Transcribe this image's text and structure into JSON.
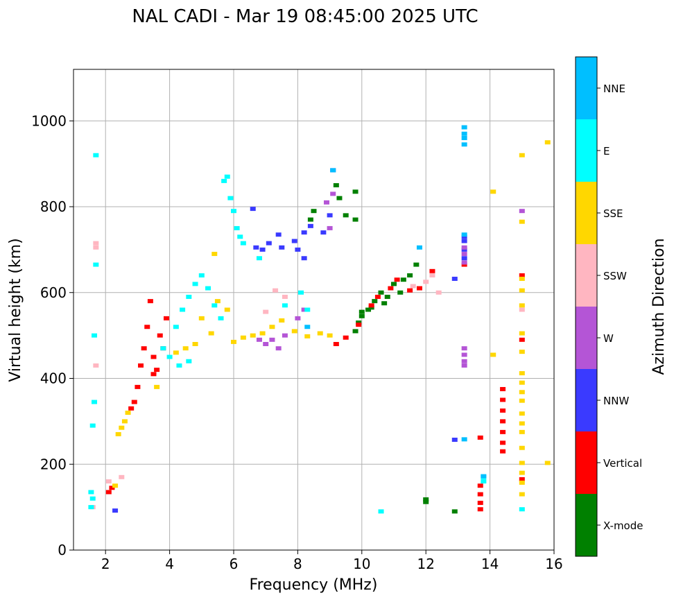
{
  "chart_data": {
    "type": "scatter",
    "title": "NAL CADI - Mar 19 08:45:00 2025 UTC",
    "xlabel": "Frequency (MHz)",
    "ylabel": "Virtual height (km)",
    "xlim": [
      1,
      16
    ],
    "ylim": [
      0,
      1120
    ],
    "xticks": [
      2,
      4,
      6,
      8,
      10,
      12,
      14,
      16
    ],
    "yticks": [
      0,
      200,
      400,
      600,
      800,
      1000
    ],
    "grid": true,
    "colorbar": {
      "label": "Azimuth Direction",
      "categories": [
        {
          "name": "X-mode",
          "color": "#008000"
        },
        {
          "name": "Vertical",
          "color": "#ff0000"
        },
        {
          "name": "NNW",
          "color": "#3a3aff"
        },
        {
          "name": "W",
          "color": "#b455d6"
        },
        {
          "name": "SSW",
          "color": "#ffb6c1"
        },
        {
          "name": "SSE",
          "color": "#ffd700"
        },
        {
          "name": "E",
          "color": "#00ffff"
        },
        {
          "name": "NNE",
          "color": "#00bfff"
        }
      ]
    },
    "series": [
      {
        "name": "X-mode",
        "points": [
          [
            9.8,
            510
          ],
          [
            9.9,
            530
          ],
          [
            10.0,
            545
          ],
          [
            10.2,
            560
          ],
          [
            10.4,
            580
          ],
          [
            10.6,
            600
          ],
          [
            10.8,
            590
          ],
          [
            11.0,
            620
          ],
          [
            11.2,
            600
          ],
          [
            11.5,
            640
          ],
          [
            12.0,
            112
          ],
          [
            12.0,
            118
          ],
          [
            12.9,
            90
          ],
          [
            8.4,
            770
          ],
          [
            8.5,
            790
          ],
          [
            9.2,
            850
          ],
          [
            9.3,
            820
          ],
          [
            9.5,
            780
          ],
          [
            9.8,
            770
          ],
          [
            9.8,
            835
          ],
          [
            10.0,
            555
          ],
          [
            10.3,
            565
          ],
          [
            10.7,
            575
          ],
          [
            11.3,
            630
          ],
          [
            11.7,
            665
          ]
        ]
      },
      {
        "name": "Vertical",
        "points": [
          [
            3.0,
            380
          ],
          [
            3.1,
            430
          ],
          [
            3.2,
            470
          ],
          [
            3.3,
            520
          ],
          [
            3.4,
            580
          ],
          [
            3.5,
            450
          ],
          [
            3.6,
            420
          ],
          [
            3.7,
            500
          ],
          [
            3.8,
            470
          ],
          [
            3.9,
            540
          ],
          [
            2.8,
            330
          ],
          [
            2.9,
            345
          ],
          [
            9.2,
            480
          ],
          [
            9.5,
            495
          ],
          [
            9.9,
            525
          ],
          [
            10.3,
            570
          ],
          [
            10.5,
            590
          ],
          [
            10.9,
            610
          ],
          [
            11.1,
            630
          ],
          [
            11.5,
            605
          ],
          [
            11.8,
            610
          ],
          [
            12.2,
            650
          ],
          [
            13.2,
            665
          ],
          [
            14.4,
            375
          ],
          [
            14.4,
            350
          ],
          [
            14.4,
            325
          ],
          [
            14.4,
            300
          ],
          [
            14.4,
            275
          ],
          [
            14.4,
            250
          ],
          [
            14.4,
            230
          ],
          [
            13.7,
            95
          ],
          [
            13.7,
            110
          ],
          [
            13.7,
            130
          ],
          [
            13.7,
            150
          ],
          [
            13.7,
            262
          ],
          [
            15.0,
            490
          ],
          [
            15.0,
            640
          ],
          [
            15.0,
            165
          ],
          [
            2.1,
            135
          ],
          [
            2.2,
            145
          ],
          [
            3.5,
            410
          ]
        ]
      },
      {
        "name": "NNW",
        "points": [
          [
            6.7,
            705
          ],
          [
            6.9,
            700
          ],
          [
            7.1,
            715
          ],
          [
            7.4,
            735
          ],
          [
            7.5,
            705
          ],
          [
            7.9,
            720
          ],
          [
            8.0,
            700
          ],
          [
            8.2,
            740
          ],
          [
            8.4,
            755
          ],
          [
            8.8,
            740
          ],
          [
            9.0,
            780
          ],
          [
            6.6,
            795
          ],
          [
            13.2,
            730
          ],
          [
            13.2,
            720
          ],
          [
            13.2,
            700
          ],
          [
            13.2,
            680
          ],
          [
            12.9,
            632
          ],
          [
            12.9,
            257
          ],
          [
            2.3,
            92
          ],
          [
            9.1,
            885
          ],
          [
            8.2,
            680
          ]
        ]
      },
      {
        "name": "W",
        "points": [
          [
            7.0,
            480
          ],
          [
            7.2,
            490
          ],
          [
            7.6,
            500
          ],
          [
            8.0,
            540
          ],
          [
            8.2,
            560
          ],
          [
            9.0,
            750
          ],
          [
            9.1,
            830
          ],
          [
            8.9,
            810
          ],
          [
            13.2,
            470
          ],
          [
            13.2,
            455
          ],
          [
            13.2,
            440
          ],
          [
            13.2,
            430
          ],
          [
            13.2,
            705
          ],
          [
            13.2,
            690
          ],
          [
            13.2,
            670
          ],
          [
            15.0,
            790
          ],
          [
            6.8,
            490
          ],
          [
            7.4,
            470
          ]
        ]
      },
      {
        "name": "SSW",
        "points": [
          [
            1.7,
            705
          ],
          [
            1.7,
            715
          ],
          [
            1.7,
            430
          ],
          [
            1.6,
            100
          ],
          [
            2.1,
            160
          ],
          [
            2.5,
            170
          ],
          [
            7.3,
            605
          ],
          [
            7.6,
            590
          ],
          [
            11.6,
            615
          ],
          [
            12.0,
            625
          ],
          [
            12.4,
            600
          ],
          [
            15.0,
            560
          ],
          [
            12.2,
            640
          ],
          [
            7.0,
            555
          ]
        ]
      },
      {
        "name": "SSE",
        "points": [
          [
            2.4,
            270
          ],
          [
            2.5,
            285
          ],
          [
            2.6,
            300
          ],
          [
            2.7,
            320
          ],
          [
            2.3,
            150
          ],
          [
            3.6,
            380
          ],
          [
            4.2,
            460
          ],
          [
            4.5,
            470
          ],
          [
            4.8,
            480
          ],
          [
            5.0,
            540
          ],
          [
            5.3,
            505
          ],
          [
            5.5,
            580
          ],
          [
            5.8,
            560
          ],
          [
            6.0,
            485
          ],
          [
            6.3,
            495
          ],
          [
            6.6,
            500
          ],
          [
            6.9,
            505
          ],
          [
            7.2,
            520
          ],
          [
            7.5,
            535
          ],
          [
            7.9,
            510
          ],
          [
            8.3,
            498
          ],
          [
            8.7,
            505
          ],
          [
            9.0,
            500
          ],
          [
            14.1,
            835
          ],
          [
            14.1,
            455
          ],
          [
            15.0,
            920
          ],
          [
            15.0,
            765
          ],
          [
            15.0,
            632
          ],
          [
            15.0,
            605
          ],
          [
            15.0,
            570
          ],
          [
            15.0,
            505
          ],
          [
            15.0,
            462
          ],
          [
            15.0,
            412
          ],
          [
            15.0,
            390
          ],
          [
            15.0,
            368
          ],
          [
            15.0,
            348
          ],
          [
            15.0,
            318
          ],
          [
            15.0,
            295
          ],
          [
            15.0,
            275
          ],
          [
            15.0,
            238
          ],
          [
            15.0,
            203
          ],
          [
            15.0,
            180
          ],
          [
            15.0,
            157
          ],
          [
            15.0,
            130
          ],
          [
            15.8,
            203
          ],
          [
            15.8,
            950
          ],
          [
            5.4,
            690
          ]
        ]
      },
      {
        "name": "E",
        "points": [
          [
            1.55,
            100
          ],
          [
            1.6,
            120
          ],
          [
            1.55,
            135
          ],
          [
            1.7,
            920
          ],
          [
            1.7,
            665
          ],
          [
            1.65,
            500
          ],
          [
            1.65,
            345
          ],
          [
            1.6,
            290
          ],
          [
            3.8,
            470
          ],
          [
            4.0,
            450
          ],
          [
            4.2,
            520
          ],
          [
            4.4,
            560
          ],
          [
            4.6,
            590
          ],
          [
            4.8,
            620
          ],
          [
            5.0,
            640
          ],
          [
            5.2,
            610
          ],
          [
            5.4,
            570
          ],
          [
            5.6,
            540
          ],
          [
            5.7,
            860
          ],
          [
            5.8,
            870
          ],
          [
            5.9,
            820
          ],
          [
            6.0,
            790
          ],
          [
            6.1,
            750
          ],
          [
            6.2,
            730
          ],
          [
            6.3,
            715
          ],
          [
            6.8,
            680
          ],
          [
            7.6,
            570
          ],
          [
            8.1,
            600
          ],
          [
            8.3,
            560
          ],
          [
            13.8,
            170
          ],
          [
            13.8,
            160
          ],
          [
            10.6,
            90
          ],
          [
            15.0,
            95
          ],
          [
            4.3,
            430
          ],
          [
            4.6,
            440
          ]
        ]
      },
      {
        "name": "NNE",
        "points": [
          [
            13.2,
            985
          ],
          [
            13.2,
            970
          ],
          [
            13.2,
            960
          ],
          [
            13.2,
            945
          ],
          [
            13.2,
            735
          ],
          [
            13.2,
            258
          ],
          [
            13.8,
            172
          ],
          [
            11.8,
            705
          ],
          [
            8.3,
            520
          ],
          [
            9.1,
            885
          ]
        ]
      }
    ]
  }
}
